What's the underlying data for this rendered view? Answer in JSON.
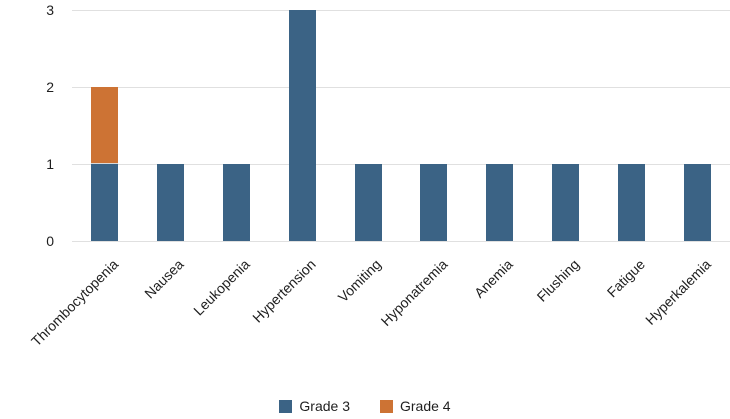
{
  "figure": {
    "background_color": "#ffffff",
    "text_color": "#1f1f1f",
    "gridline_color": "#e0e0e0",
    "segment_separator_color": "#d9d9d9"
  },
  "chart_data": {
    "type": "bar",
    "stacked": true,
    "title": "",
    "xlabel": "",
    "ylabel": "",
    "categories": [
      "Thrombocytopenia",
      "Nausea",
      "Leukopenia",
      "Hypertension",
      "Vomiting",
      "Hyponatremia",
      "Anemia",
      "Flushing",
      "Fatigue",
      "Hyperkalemia"
    ],
    "series": [
      {
        "name": "Grade 3",
        "color": "#3B6385",
        "values": [
          1,
          1,
          1,
          3,
          1,
          1,
          1,
          1,
          1,
          1
        ]
      },
      {
        "name": "Grade 4",
        "color": "#CD7334",
        "values": [
          1,
          0,
          0,
          0,
          0,
          0,
          0,
          0,
          0,
          0
        ]
      }
    ],
    "ylim": [
      0,
      3
    ],
    "yticks": [
      0,
      1,
      2,
      3
    ],
    "grid": true,
    "legend_position": "bottom"
  }
}
